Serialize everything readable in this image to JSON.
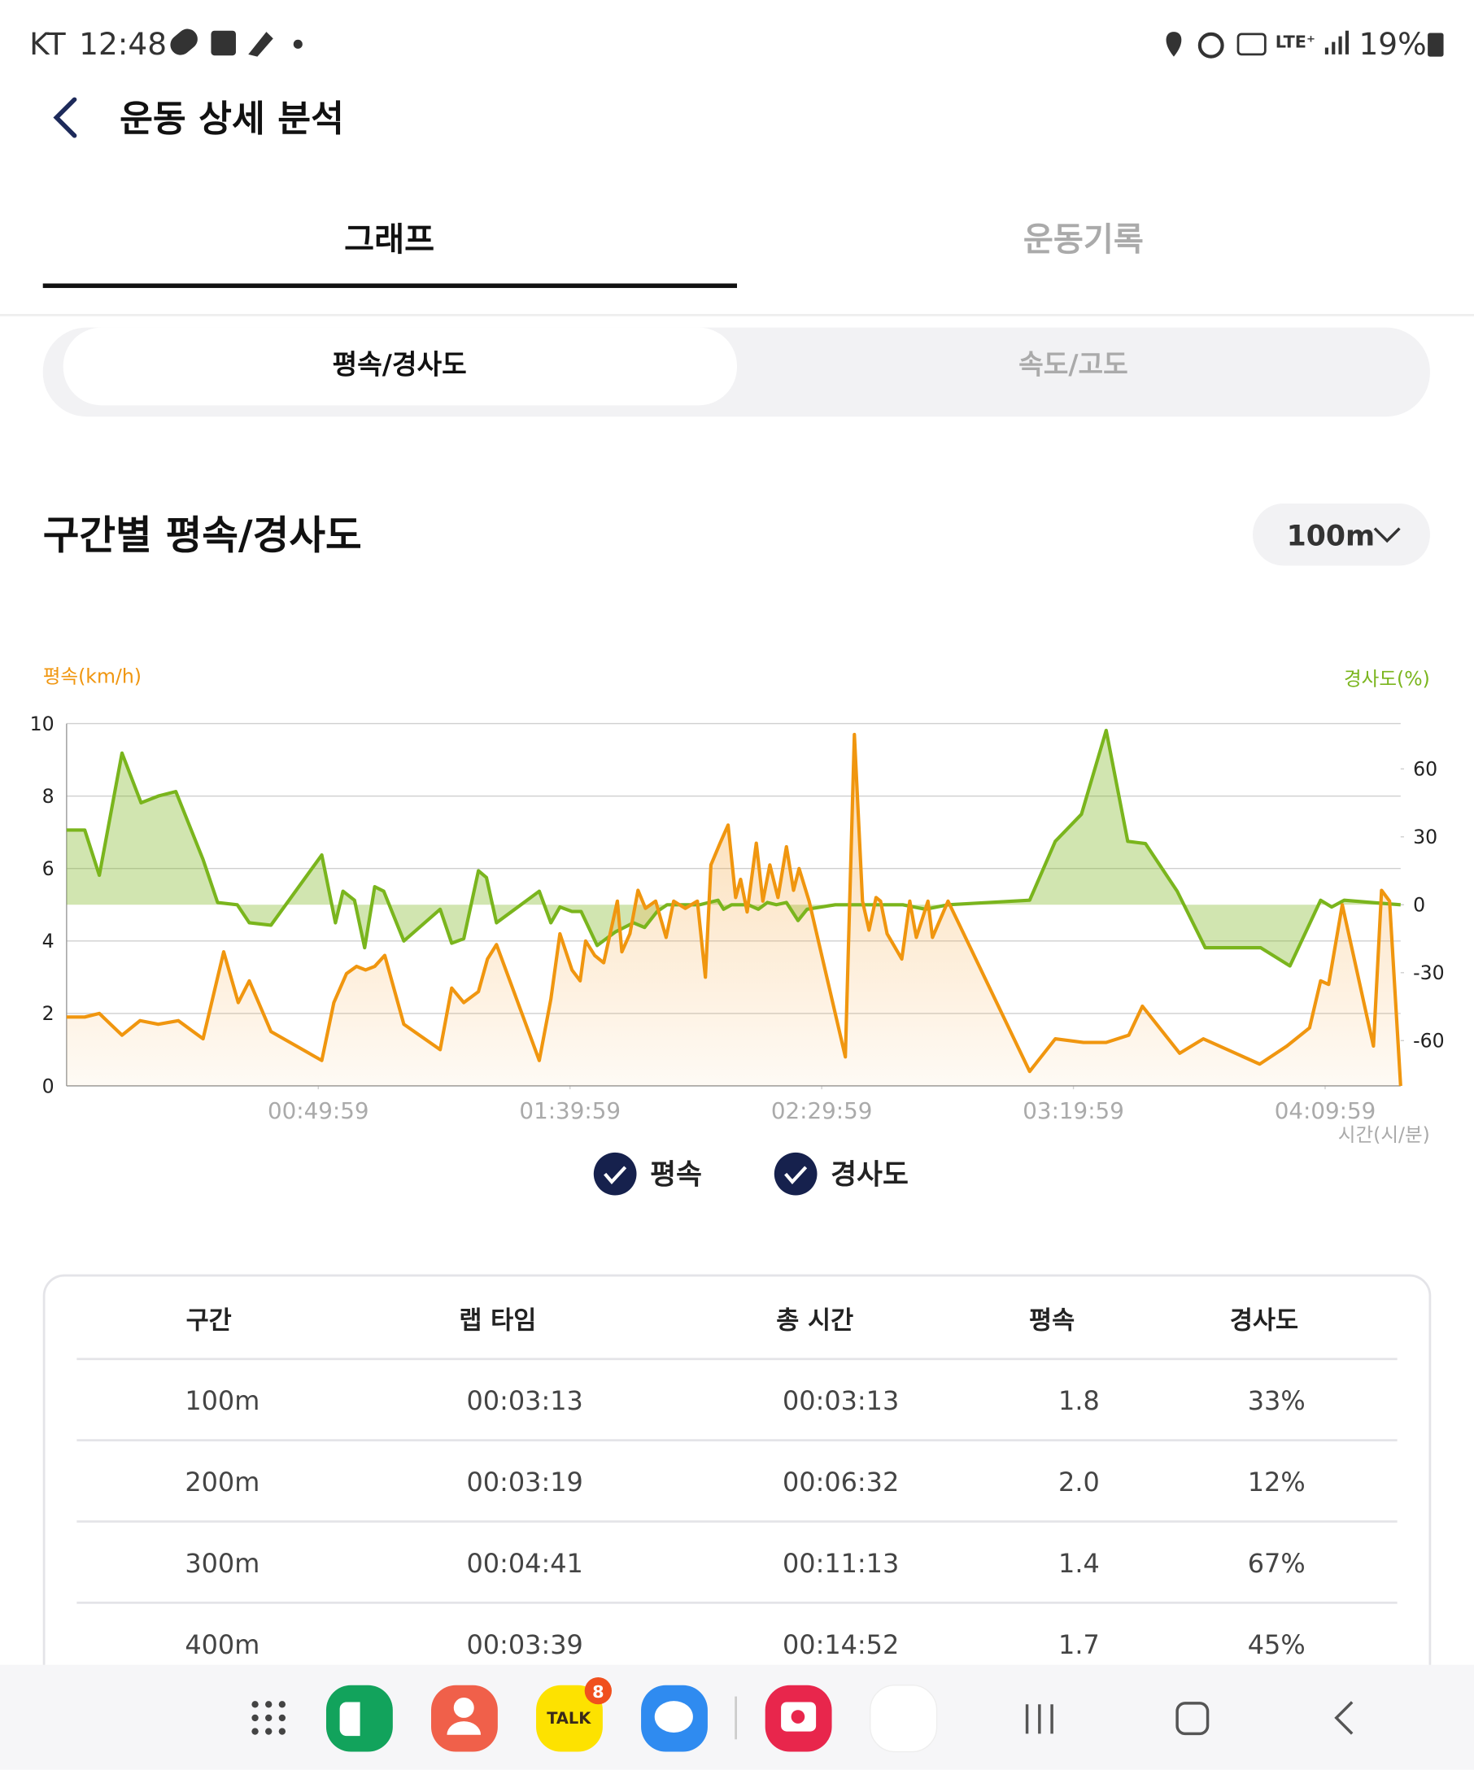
{
  "status_bar": {
    "carrier": "KT",
    "time": "12:48",
    "battery": "19%"
  },
  "header": {
    "title": "운동 상세 분석"
  },
  "tabs": [
    "그래프",
    "운동기록"
  ],
  "subtabs": [
    "평속/경사도",
    "속도/고도"
  ],
  "section": {
    "title": "구간별 평속/경사도",
    "dropdown": "100m"
  },
  "chart_data": {
    "type": "line",
    "y_label": "평속(km/h)",
    "y2_label": "경사도(%)",
    "x_label": "시간(시/분)",
    "xlim": [
      0,
      265
    ],
    "xticks": [
      {
        "value": 50,
        "label": "00:49:59"
      },
      {
        "value": 100,
        "label": "01:39:59"
      },
      {
        "value": 150,
        "label": "02:29:59"
      },
      {
        "value": 200,
        "label": "03:19:59"
      },
      {
        "value": 250,
        "label": "04:09:59"
      }
    ],
    "ylim": [
      0,
      10
    ],
    "yticks": [
      0,
      2,
      4,
      6,
      8,
      10
    ],
    "y2lim": [
      -80,
      80
    ],
    "y2ticks": [
      60,
      30,
      0,
      -30,
      -60
    ],
    "grid": true,
    "series": [
      {
        "name": "평속",
        "color": "#f0960f",
        "x": [
          0,
          3.6,
          6.5,
          11,
          14.6,
          18.2,
          22.2,
          27.1,
          31.2,
          34.1,
          36.3,
          40.6,
          50.7,
          53.1,
          55.6,
          57.6,
          59.4,
          61.2,
          63.2,
          67,
          74.2,
          76.5,
          78.9,
          81.8,
          83.6,
          85.4,
          93.9,
          96.2,
          98,
          100.4,
          102,
          103.1,
          104.9,
          106.7,
          109.4,
          110.3,
          111.9,
          113.5,
          115,
          117,
          119.1,
          120.6,
          122.9,
          125.3,
          126.9,
          128,
          129.8,
          131.4,
          132.9,
          133.9,
          135.2,
          137,
          138.3,
          139.7,
          141.3,
          143,
          144.4,
          145.5,
          147.5,
          154.7,
          156.5,
          158.1,
          159.4,
          160.8,
          161.7,
          163,
          165.9,
          167.5,
          168.8,
          171.1,
          172,
          175.1,
          191.3,
          196.4,
          202,
          206.5,
          211,
          213.7,
          221.1,
          225.8,
          237,
          242.4,
          246.9,
          249.1,
          250.7,
          253.4,
          259.6,
          261.2,
          262.8,
          265
        ],
        "values": [
          1.9,
          1.9,
          2.0,
          1.4,
          1.8,
          1.7,
          1.8,
          1.3,
          3.7,
          2.3,
          2.9,
          1.5,
          0.7,
          2.3,
          3.1,
          3.3,
          3.2,
          3.3,
          3.6,
          1.7,
          1.0,
          2.7,
          2.3,
          2.6,
          3.5,
          3.9,
          0.7,
          2.4,
          4.2,
          3.2,
          2.9,
          4.0,
          3.6,
          3.4,
          5.1,
          3.7,
          4.2,
          5.4,
          4.9,
          5.1,
          4.1,
          5.1,
          4.9,
          5.1,
          3.0,
          6.1,
          6.7,
          7.2,
          5.2,
          5.7,
          4.8,
          6.7,
          5.1,
          6.1,
          5.2,
          6.6,
          5.4,
          6.0,
          5.1,
          0.8,
          9.7,
          5.1,
          4.3,
          5.2,
          5.1,
          4.2,
          3.5,
          5.1,
          4.1,
          5.1,
          4.1,
          5.1,
          0.4,
          1.3,
          1.2,
          1.2,
          1.4,
          2.2,
          0.9,
          1.3,
          0.6,
          1.1,
          1.6,
          2.9,
          2.8,
          5.0,
          1.1,
          5.4,
          5.1,
          0
        ]
      },
      {
        "name": "경사도",
        "color": "#7ab51d",
        "axis": "y2",
        "x": [
          0,
          3.6,
          6.5,
          11,
          14.8,
          18.2,
          21.7,
          27.1,
          30,
          33.9,
          36.3,
          40.6,
          50.7,
          53.4,
          54.9,
          57.2,
          59.2,
          61.2,
          63,
          67,
          74.2,
          76.5,
          78.9,
          81.8,
          83.4,
          85.4,
          93.9,
          96.2,
          98,
          100.4,
          102.2,
          105.4,
          109,
          112.6,
          114.8,
          117.3,
          119.3,
          125.8,
          129.4,
          130.5,
          132.1,
          135.4,
          137.4,
          139.2,
          141,
          143,
          145.3,
          147.1,
          152.7,
          166.1,
          170.6,
          175.1,
          191.3,
          196.4,
          201.6,
          206.5,
          210.8,
          214.3,
          220.6,
          226.2,
          237.2,
          243,
          249.1,
          251.3,
          253.8,
          259.2,
          265
        ],
        "values": [
          33,
          33,
          13,
          67,
          45,
          48,
          50,
          20,
          1,
          0,
          -8,
          -9,
          22,
          -8,
          6,
          2,
          -19,
          8,
          6,
          -16,
          -2,
          -17,
          -15,
          15,
          12,
          -8,
          6,
          -8,
          -1,
          -3,
          -3,
          -18,
          -12,
          -8,
          -10,
          -3,
          0,
          0,
          2,
          -2,
          0,
          0,
          -2,
          1,
          0,
          1,
          -7,
          -2,
          0,
          0,
          -2,
          0,
          2,
          28,
          40,
          77,
          28,
          27,
          6,
          -19,
          -19,
          -27,
          2,
          -1,
          2,
          1,
          0
        ]
      }
    ]
  },
  "table": {
    "columns": [
      "구간",
      "랩 타임",
      "총 시간",
      "평속",
      "경사도"
    ],
    "rows": [
      [
        "100m",
        "00:03:13",
        "00:03:13",
        "1.8",
        "33%"
      ],
      [
        "200m",
        "00:03:19",
        "00:06:32",
        "2.0",
        "12%"
      ],
      [
        "300m",
        "00:04:41",
        "00:11:13",
        "1.4",
        "67%"
      ],
      [
        "400m",
        "00:03:39",
        "00:14:52",
        "1.7",
        "45%"
      ]
    ]
  },
  "dock": {
    "talk": "TALK",
    "badge": "8"
  }
}
